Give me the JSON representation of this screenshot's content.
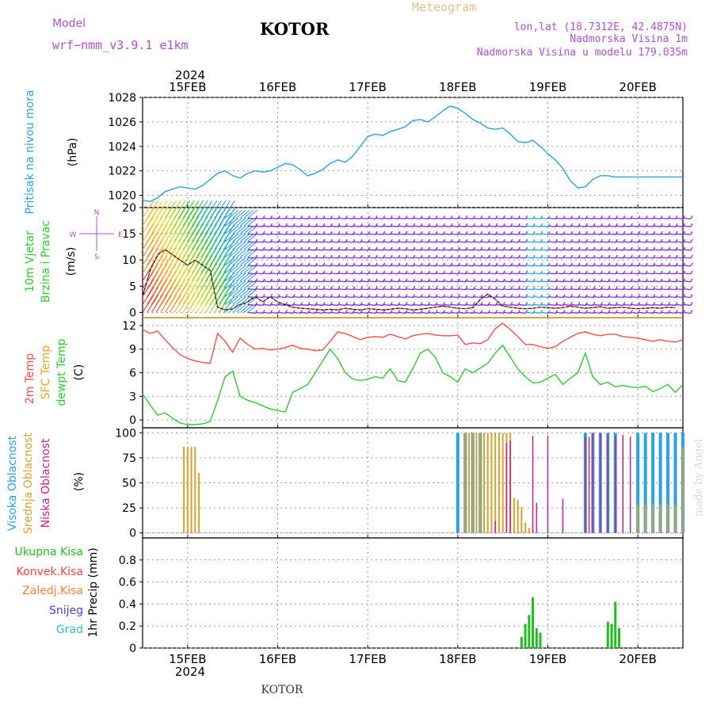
{
  "header": {
    "model_label": "Model",
    "model_name": "wrf−nmm_v3.9.1  e1km",
    "title": "KOTOR",
    "meteogram_label": "Meteogram",
    "lonlat": "lon,lat (18.7312E, 42.4875N)",
    "altitude": "Nadmorska Visina 1m",
    "model_altitude": "Nadmorska Visina u modelu 179.035m",
    "footer_title": "KOTOR",
    "watermark": "made by Angel"
  },
  "colors": {
    "pressure": "#29a3e6",
    "temp2m": "#ff4a4a",
    "sfc": "#e0a92d",
    "dewpt": "#2ecc2e",
    "wind_title": "#2ecc2e",
    "cloud_high": "#29a3e6",
    "cloud_mid": "#d9a22b",
    "cloud_low": "#cc1f8a",
    "model_text": "#b04fd6",
    "meteogram_text": "#e8c08a",
    "precip_total": "#1fbf1f",
    "precip_conv": "#ff4040",
    "precip_frz": "#ff8030",
    "precip_snow": "#4040e0",
    "precip_grad": "#30c0c0",
    "wind_barb": "#8a2be2"
  },
  "chart_data": [
    {
      "type": "line",
      "title": "",
      "ylabel_left": "Pritisak na nivou mora",
      "ylabel_unit": "(hPa)",
      "x_unit": "hours since 2024-02-14 12:00 UTC",
      "ylim": [
        1019,
        1028
      ],
      "yticks": [
        1020,
        1022,
        1024,
        1026,
        1028
      ],
      "series": [
        {
          "name": "Pritisak na nivou mora",
          "color": "#29a3e6",
          "x": [
            0,
            2,
            4,
            6,
            8,
            10,
            12,
            14,
            16,
            18,
            20,
            22,
            24,
            26,
            28,
            30,
            32,
            34,
            36,
            38,
            40,
            42,
            44,
            46,
            48,
            50,
            52,
            54,
            56,
            58,
            60,
            62,
            64,
            66,
            68,
            70,
            72,
            74,
            76,
            78,
            80,
            82,
            84,
            86,
            88,
            90,
            92,
            94,
            96,
            98,
            100,
            102,
            104,
            106,
            108,
            110,
            112,
            114,
            116,
            118,
            120,
            122,
            124,
            126,
            128,
            130,
            132,
            134,
            136,
            138,
            140,
            142,
            144
          ],
          "values": [
            1019.6,
            1019.5,
            1019.8,
            1020.3,
            1020.5,
            1020.7,
            1020.6,
            1020.5,
            1020.8,
            1021.3,
            1021.8,
            1022.0,
            1021.6,
            1021.4,
            1021.8,
            1022.0,
            1021.9,
            1022.0,
            1022.3,
            1022.6,
            1022.5,
            1022.1,
            1021.6,
            1021.8,
            1022.1,
            1022.6,
            1022.9,
            1022.7,
            1023.2,
            1024.0,
            1024.8,
            1025.0,
            1024.9,
            1025.2,
            1025.4,
            1025.6,
            1026.1,
            1026.2,
            1026.0,
            1026.4,
            1026.9,
            1027.3,
            1027.1,
            1026.7,
            1026.2,
            1025.9,
            1025.5,
            1025.4,
            1025.5,
            1025.0,
            1024.4,
            1024.3,
            1024.5,
            1024.0,
            1023.4,
            1022.9,
            1022.2,
            1021.2,
            1020.6,
            1020.7,
            1021.3,
            1021.6,
            1021.6,
            1021.5,
            1021.5,
            1021.5,
            1021.5,
            1021.5,
            1021.5,
            1021.5,
            1021.5,
            1021.5,
            1021.5
          ]
        }
      ]
    },
    {
      "type": "line",
      "title": "",
      "ylabel_left": [
        "10m Vjetar",
        "Brzina i Pravac"
      ],
      "ylabel_unit": "(m/s)",
      "compass": {
        "n": "N",
        "s": "S",
        "w": "W",
        "e": "E"
      },
      "x_unit": "hours since 2024-02-14 12:00 UTC",
      "ylim": [
        -1,
        20
      ],
      "yticks": [
        0,
        5,
        10,
        15,
        20
      ],
      "series": [
        {
          "name": "10m Vjetar",
          "color": "#000000",
          "x": [
            0,
            2,
            4,
            6,
            8,
            10,
            12,
            14,
            16,
            18,
            20,
            22,
            24,
            26,
            28,
            30,
            32,
            34,
            36,
            38,
            40,
            42,
            44,
            46,
            48,
            50,
            52,
            54,
            56,
            58,
            60,
            62,
            64,
            66,
            68,
            70,
            72,
            74,
            76,
            78,
            80,
            82,
            84,
            86,
            88,
            90,
            92,
            94,
            96,
            98,
            100,
            102,
            104,
            106,
            108,
            110,
            112,
            114,
            116,
            118,
            120,
            122,
            124,
            126,
            128,
            130,
            132,
            134,
            136,
            138,
            140,
            142
          ],
          "values": [
            3,
            8,
            11,
            12,
            11,
            10,
            9,
            10,
            9,
            8,
            1,
            0.5,
            0.7,
            1.5,
            2,
            3,
            2,
            3,
            2,
            1.5,
            1,
            0.8,
            0.7,
            0.6,
            0.5,
            0.6,
            0.5,
            0.8,
            0.6,
            0.5,
            0.7,
            0.6,
            0.5,
            0.6,
            0.8,
            0.7,
            0.5,
            0.6,
            0.8,
            1,
            1.2,
            1,
            0.8,
            0.7,
            0.9,
            2.5,
            3.5,
            2.5,
            1.2,
            1,
            0.8,
            0.7,
            0.8,
            1,
            0.9,
            0.8,
            0.9,
            1.2,
            1.0,
            0.8,
            0.9,
            1.1,
            0.8,
            0.9,
            1.0,
            0.8,
            0.7,
            0.8,
            0.9,
            0.8,
            1,
            0.9
          ]
        }
      ]
    },
    {
      "type": "line",
      "title": "",
      "ylabel_left": [
        "2m Temp",
        "SFC Temp",
        "dewpt Temp"
      ],
      "ylabel_unit": "(C)",
      "x_unit": "hours since 2024-02-14 12:00 UTC",
      "ylim": [
        -1,
        13
      ],
      "yticks": [
        0,
        3,
        6,
        9,
        12
      ],
      "series": [
        {
          "name": "2m Temp",
          "color": "#ff4a4a",
          "x": [
            0,
            2,
            4,
            6,
            8,
            10,
            12,
            14,
            16,
            18,
            20,
            22,
            24,
            26,
            28,
            30,
            32,
            34,
            36,
            38,
            40,
            42,
            44,
            46,
            48,
            50,
            52,
            54,
            56,
            58,
            60,
            62,
            64,
            66,
            68,
            70,
            72,
            74,
            76,
            78,
            80,
            82,
            84,
            86,
            88,
            90,
            92,
            94,
            96,
            98,
            100,
            102,
            104,
            106,
            108,
            110,
            112,
            114,
            116,
            118,
            120,
            122,
            124,
            126,
            128,
            130,
            132,
            134,
            136,
            138,
            140,
            142,
            144
          ],
          "values": [
            11.5,
            11.0,
            11.3,
            10.2,
            9.2,
            8.3,
            7.8,
            7.5,
            7.3,
            7.2,
            11.0,
            10.0,
            8.6,
            10.4,
            9.6,
            9.0,
            9.1,
            8.9,
            9.0,
            9.2,
            9.5,
            9.1,
            9.0,
            8.8,
            8.9,
            10.0,
            11.2,
            11.0,
            10.6,
            10.2,
            10.5,
            10.6,
            10.5,
            10.9,
            10.6,
            10.3,
            10.7,
            10.9,
            11.0,
            10.8,
            10.7,
            10.7,
            10.8,
            9.6,
            9.8,
            9.7,
            10.2,
            11.6,
            12.3,
            11.5,
            10.6,
            9.6,
            9.6,
            9.3,
            9.1,
            9.3,
            10.0,
            10.5,
            11.0,
            11.2,
            10.9,
            10.7,
            10.9,
            10.9,
            10.6,
            10.5,
            10.4,
            10.2,
            10.0,
            10.2,
            10.0,
            9.9,
            10.2
          ]
        },
        {
          "name": "SFC Temp",
          "color": "#e0a92d",
          "x": [
            0,
            144
          ],
          "values": [
            13.0,
            13.0
          ]
        },
        {
          "name": "dewpt Temp",
          "color": "#2ecc2e",
          "x": [
            0,
            2,
            4,
            6,
            8,
            10,
            12,
            14,
            16,
            18,
            20,
            22,
            24,
            26,
            28,
            30,
            32,
            34,
            36,
            38,
            40,
            42,
            44,
            46,
            48,
            50,
            52,
            54,
            56,
            58,
            60,
            62,
            64,
            66,
            68,
            70,
            72,
            74,
            76,
            78,
            80,
            82,
            84,
            86,
            88,
            90,
            92,
            94,
            96,
            98,
            100,
            102,
            104,
            106,
            108,
            110,
            112,
            114,
            116,
            118,
            120,
            122,
            124,
            126,
            128,
            130,
            132,
            134,
            136,
            138,
            140,
            142,
            144
          ],
          "values": [
            3.3,
            1.9,
            0.6,
            0.9,
            0.2,
            -0.4,
            -0.6,
            -0.6,
            -0.5,
            -0.2,
            2.5,
            5.5,
            6.2,
            3.0,
            2.5,
            2.2,
            1.8,
            1.4,
            1.2,
            1.0,
            3.5,
            4.0,
            4.5,
            6.0,
            7.5,
            9.0,
            7.8,
            6.0,
            5.2,
            5.0,
            5.2,
            5.5,
            5.3,
            6.5,
            5.0,
            4.8,
            6.5,
            8.5,
            9.0,
            8.0,
            6.0,
            5.5,
            4.8,
            6.5,
            6.0,
            6.6,
            7.2,
            8.5,
            9.5,
            8.0,
            6.5,
            5.5,
            4.7,
            4.8,
            5.3,
            5.8,
            4.5,
            5.3,
            6.0,
            8.5,
            5.5,
            4.5,
            4.8,
            4.2,
            4.4,
            4.2,
            4.1,
            4.3,
            3.6,
            4.0,
            4.5,
            3.5,
            4.5
          ]
        }
      ]
    },
    {
      "type": "bar",
      "title": "",
      "ylabel_left": [
        "Visoka Oblacnost",
        "Srednja Oblacnost",
        "Niska Oblacnost"
      ],
      "ylabel_unit": "(%)",
      "x_unit": "hours since 2024-02-14 12:00 UTC",
      "ylim": [
        -5,
        105
      ],
      "yticks": [
        0,
        25,
        50,
        75,
        100
      ],
      "series": [
        {
          "name": "Visoka Oblacnost",
          "color": "#29a3e6",
          "x": [
            84,
            86,
            88,
            90,
            92,
            94,
            96,
            98,
            100,
            102,
            104,
            106,
            108,
            110,
            112,
            114,
            116,
            118,
            120,
            122,
            124,
            126,
            128,
            130,
            132,
            134,
            136,
            138,
            140,
            142,
            144
          ],
          "values": [
            100,
            100,
            100,
            100,
            0,
            0,
            0,
            0,
            0,
            0,
            0,
            0,
            0,
            0,
            0,
            0,
            0,
            100,
            100,
            100,
            100,
            100,
            0,
            0,
            100,
            100,
            100,
            100,
            100,
            100,
            100
          ]
        },
        {
          "name": "Srednja Oblacnost",
          "color": "#d9a22b",
          "x": [
            11,
            12,
            13,
            14,
            15,
            86,
            87,
            88,
            89,
            90,
            91,
            92,
            93,
            94,
            95,
            96,
            97,
            98,
            99,
            100,
            101,
            102,
            103,
            104,
            132,
            134,
            136,
            138,
            140,
            142,
            144
          ],
          "values": [
            86,
            86,
            86,
            86,
            60,
            100,
            100,
            100,
            100,
            100,
            100,
            100,
            100,
            100,
            100,
            100,
            100,
            100,
            35,
            33,
            26,
            10,
            5,
            3,
            28,
            28,
            28,
            28,
            28,
            28,
            86
          ]
        },
        {
          "name": "Niska Oblacnost",
          "color": "#cc1f8a",
          "x": [
            84,
            88,
            94,
            97,
            98,
            104,
            105,
            108,
            112,
            118,
            119,
            120,
            122,
            124,
            126,
            128,
            130
          ],
          "values": [
            0,
            0,
            12,
            90,
            92,
            97,
            30,
            97,
            34,
            96,
            96,
            100,
            100,
            98,
            97,
            98,
            96
          ]
        }
      ]
    },
    {
      "type": "bar",
      "title": "",
      "ylabel_left": [
        "Ukupna Kisa",
        "Konvek.Kisa",
        "Zaledj.Kisa",
        "Snijeg",
        "Grad"
      ],
      "ylabel_unit": "1hr Precip (mm)",
      "x_unit": "hours since 2024-02-14 12:00 UTC",
      "ylim": [
        0,
        1.0
      ],
      "yticks": [
        0,
        0.2,
        0.4,
        0.6,
        0.8
      ],
      "series": [
        {
          "name": "Ukupna Kisa",
          "color": "#1fbf1f",
          "x": [
            101,
            102,
            103,
            104,
            105,
            106,
            124,
            125,
            126,
            127
          ],
          "values": [
            0.1,
            0.22,
            0.3,
            0.46,
            0.18,
            0.14,
            0.24,
            0.22,
            0.42,
            0.18
          ]
        }
      ]
    }
  ],
  "x_axis": {
    "day_labels": [
      "15FEB",
      "16FEB",
      "17FEB",
      "18FEB",
      "19FEB",
      "20FEB"
    ],
    "day_positions_hours": [
      12,
      36,
      60,
      84,
      108,
      132
    ],
    "year_label": "2024",
    "range_hours": [
      0,
      144
    ]
  }
}
